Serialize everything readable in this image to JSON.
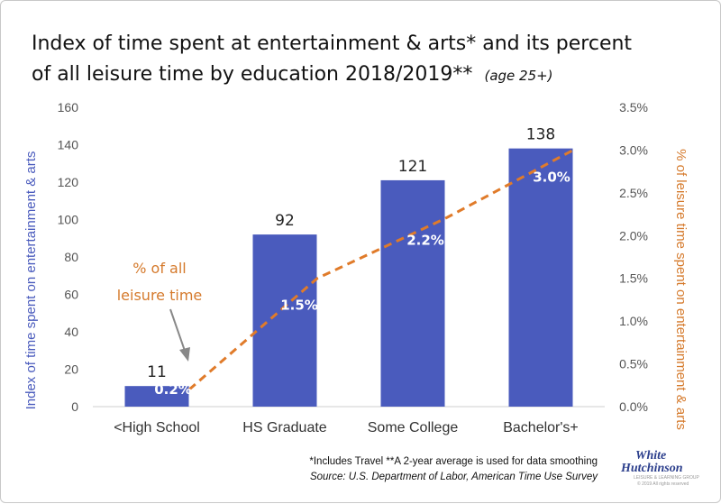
{
  "title_line1": "Index of time spent at entertainment & arts* and its percent",
  "title_line2": "of all leisure time by education 2018/2019**",
  "title_note": "(age 25+)",
  "annotation": {
    "line1": "% of all",
    "line2": "leisure time"
  },
  "footnote": "*Includes Travel **A 2-year average is used for data smoothing",
  "source": "Source: U.S. Department of Labor, American Time Use Survey",
  "logo": {
    "line1": "White",
    "line2": "Hutchinson",
    "tagline": "LEISURE & LEARNING GROUP",
    "copyright": "© 2019 All rights reserved"
  },
  "colors": {
    "bar": "#4a5bbd",
    "line": "#e07b2a"
  },
  "chart_data": {
    "type": "bar",
    "categories": [
      "<High School",
      "HS Graduate",
      "Some College",
      "Bachelor's+"
    ],
    "ylabel": "Index of time spent on entertainment & arts",
    "ylim": [
      0,
      160
    ],
    "yticks": [
      0,
      20,
      40,
      60,
      80,
      100,
      120,
      140,
      160
    ],
    "y2label": "% of leisure time spent on entertainment & arts",
    "y2lim": [
      0,
      3.5
    ],
    "y2ticks": [
      "0.0%",
      "0.5%",
      "1.0%",
      "1.5%",
      "2.0%",
      "2.5%",
      "3.0%",
      "3.5%"
    ],
    "series": [
      {
        "type": "bar",
        "axis": "left",
        "values": [
          11,
          92,
          121,
          138
        ],
        "labels": [
          "11",
          "92",
          "121",
          "138"
        ]
      },
      {
        "type": "line",
        "axis": "right",
        "style": "dashed",
        "values": [
          0.2,
          1.5,
          2.2,
          3.0
        ],
        "labels": [
          "0.2%",
          "1.5%",
          "2.2%",
          "3.0%"
        ]
      }
    ],
    "grid": false,
    "legend": "none"
  }
}
